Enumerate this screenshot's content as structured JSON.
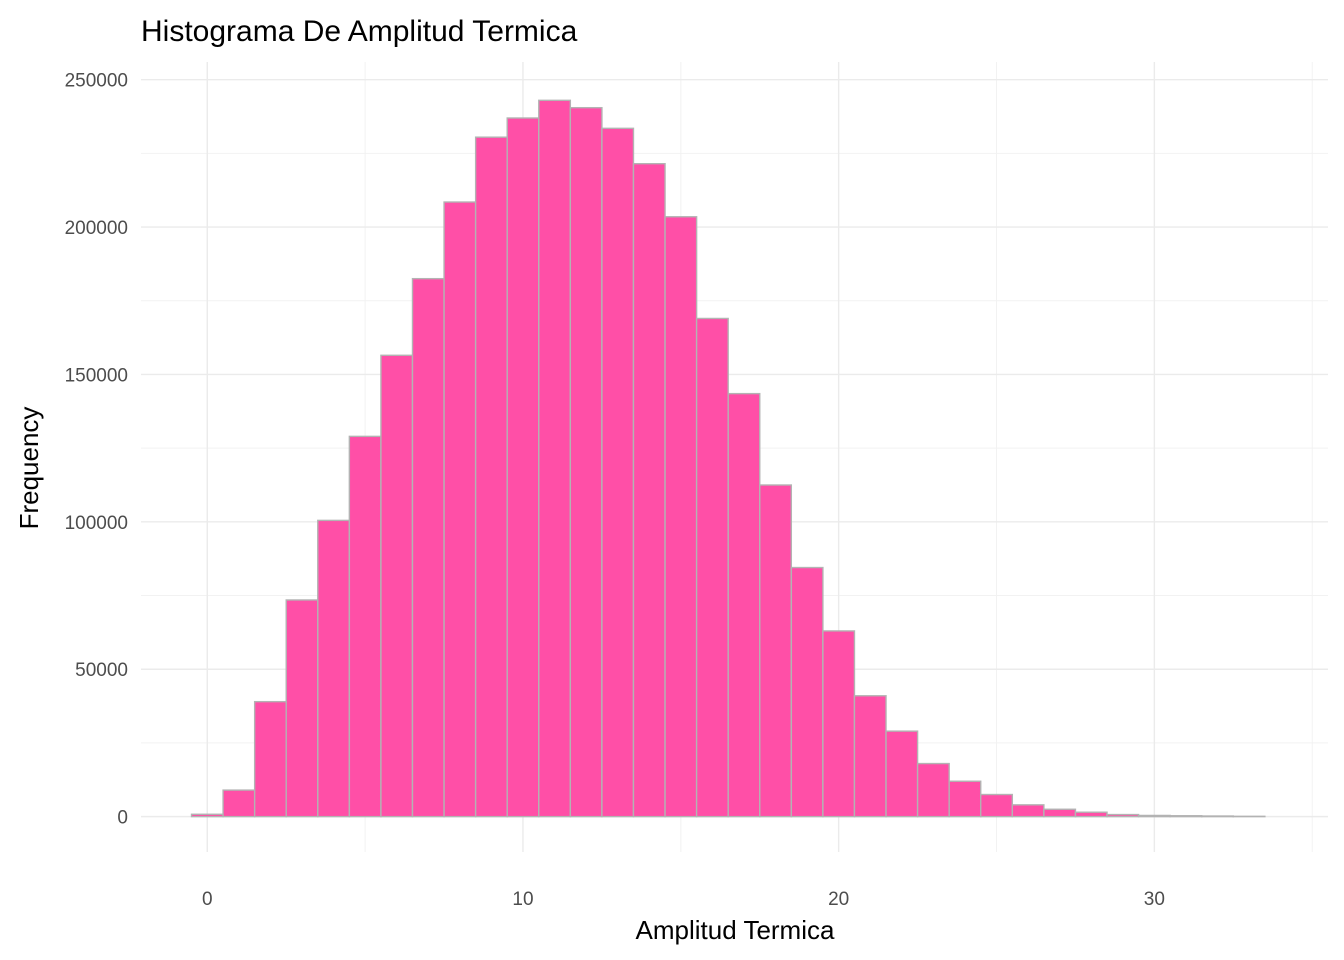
{
  "chart_data": {
    "type": "bar",
    "title": "Histograma De Amplitud Termica",
    "xlabel": "Amplitud Termica",
    "ylabel": "Frequency",
    "xlim": [
      -2.1,
      35.5
    ],
    "ylim": [
      -12000,
      256000
    ],
    "x_ticks": [
      0,
      10,
      20,
      30
    ],
    "x_tick_labels": [
      "0",
      "10",
      "20",
      "30"
    ],
    "y_ticks": [
      0,
      50000,
      100000,
      150000,
      200000,
      250000
    ],
    "y_tick_labels": [
      "0",
      "50000",
      "100000",
      "150000",
      "200000",
      "250000"
    ],
    "bin_width": 1,
    "bin_centers": [
      0,
      1,
      2,
      3,
      4,
      5,
      6,
      7,
      8,
      9,
      10,
      11,
      12,
      13,
      14,
      15,
      16,
      17,
      18,
      19,
      20,
      21,
      22,
      23,
      24,
      25,
      26,
      27,
      28,
      29,
      30,
      31,
      32,
      33
    ],
    "values": [
      800,
      9000,
      39000,
      73500,
      100500,
      129000,
      156500,
      182500,
      208500,
      230500,
      237000,
      243000,
      240500,
      233500,
      221500,
      203500,
      169000,
      143500,
      112500,
      84500,
      63000,
      41000,
      29000,
      18000,
      12000,
      7500,
      4000,
      2500,
      1500,
      700,
      400,
      300,
      200,
      100
    ],
    "bar_color": "#ff4fa7",
    "bar_border_color": "#b3b3b3",
    "grid": true
  }
}
